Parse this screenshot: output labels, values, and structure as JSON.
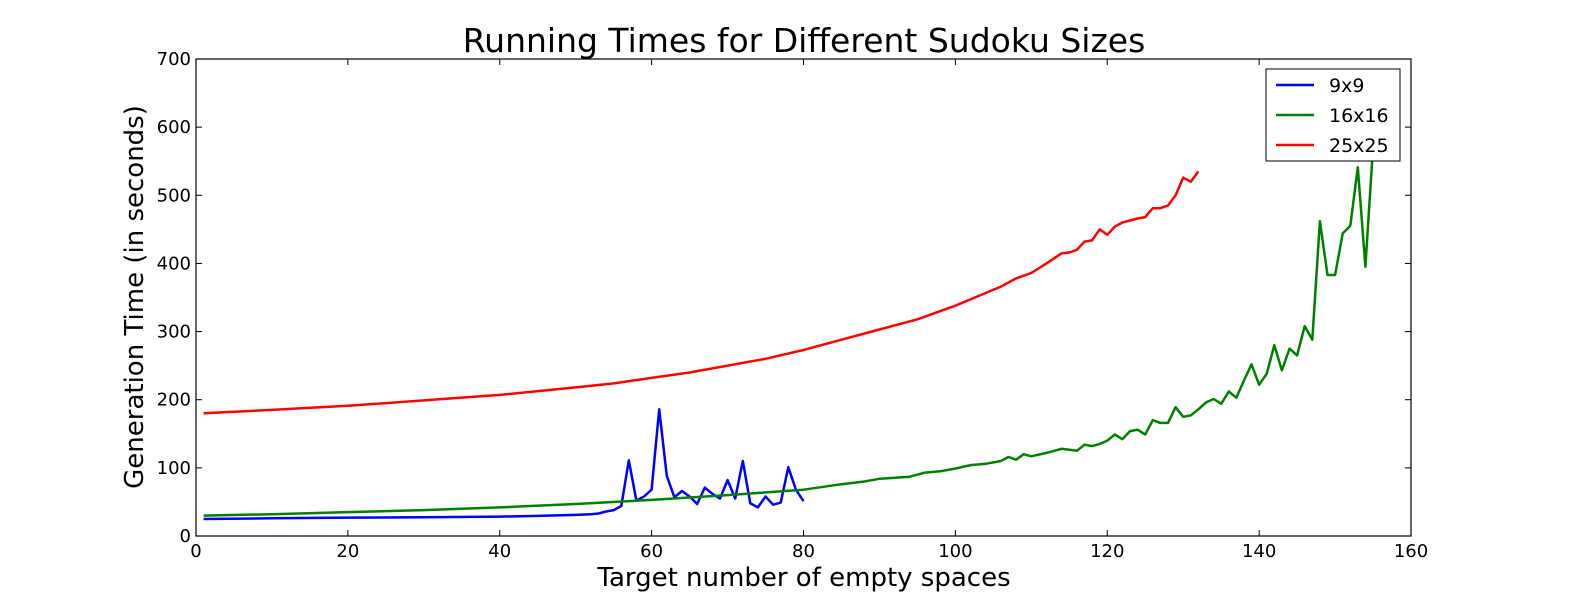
{
  "chart_data": {
    "type": "line",
    "title": "Running Times for Different Sudoku Sizes",
    "xlabel": "Target number of empty spaces",
    "ylabel": "Generation Time (in seconds)",
    "xlim": [
      0,
      160
    ],
    "ylim": [
      0,
      700
    ],
    "xticks": [
      0,
      20,
      40,
      60,
      80,
      100,
      120,
      140,
      160
    ],
    "yticks": [
      0,
      100,
      200,
      300,
      400,
      500,
      600,
      700
    ],
    "grid": false,
    "legend": "top-right",
    "series": [
      {
        "name": "9x9",
        "color": "#0000ff",
        "points": [
          [
            1,
            25
          ],
          [
            10,
            26
          ],
          [
            20,
            27
          ],
          [
            30,
            27.5
          ],
          [
            40,
            28.5
          ],
          [
            45,
            29.5
          ],
          [
            50,
            31
          ],
          [
            52,
            32
          ],
          [
            53,
            33
          ],
          [
            54,
            36
          ],
          [
            55,
            38
          ],
          [
            56,
            44
          ],
          [
            57,
            111
          ],
          [
            58,
            52
          ],
          [
            59,
            58
          ],
          [
            60,
            68
          ],
          [
            61,
            186
          ],
          [
            62,
            88
          ],
          [
            63,
            57
          ],
          [
            64,
            66
          ],
          [
            65,
            58
          ],
          [
            66,
            47
          ],
          [
            67,
            71
          ],
          [
            68,
            62
          ],
          [
            69,
            55
          ],
          [
            70,
            82
          ],
          [
            71,
            55
          ],
          [
            72,
            110
          ],
          [
            73,
            48
          ],
          [
            74,
            42
          ],
          [
            75,
            58
          ],
          [
            76,
            46
          ],
          [
            77,
            49
          ],
          [
            78,
            101
          ],
          [
            79,
            68
          ],
          [
            80,
            51
          ]
        ]
      },
      {
        "name": "16x16",
        "color": "#008000",
        "points": [
          [
            1,
            30
          ],
          [
            10,
            32
          ],
          [
            20,
            35
          ],
          [
            30,
            38
          ],
          [
            40,
            42
          ],
          [
            50,
            47
          ],
          [
            60,
            53
          ],
          [
            70,
            60
          ],
          [
            80,
            68
          ],
          [
            85,
            76
          ],
          [
            88,
            80
          ],
          [
            90,
            84
          ],
          [
            94,
            87
          ],
          [
            96,
            93
          ],
          [
            98,
            95
          ],
          [
            100,
            99
          ],
          [
            102,
            104
          ],
          [
            104,
            106
          ],
          [
            106,
            110
          ],
          [
            107,
            116
          ],
          [
            108,
            112
          ],
          [
            109,
            120
          ],
          [
            110,
            117
          ],
          [
            112,
            122
          ],
          [
            114,
            128
          ],
          [
            116,
            125
          ],
          [
            117,
            134
          ],
          [
            118,
            132
          ],
          [
            119,
            135
          ],
          [
            120,
            140
          ],
          [
            121,
            149
          ],
          [
            122,
            142
          ],
          [
            123,
            154
          ],
          [
            124,
            156
          ],
          [
            125,
            149
          ],
          [
            126,
            170
          ],
          [
            127,
            166
          ],
          [
            128,
            166
          ],
          [
            129,
            189
          ],
          [
            130,
            175
          ],
          [
            131,
            177
          ],
          [
            132,
            186
          ],
          [
            133,
            196
          ],
          [
            134,
            201
          ],
          [
            135,
            194
          ],
          [
            136,
            212
          ],
          [
            137,
            203
          ],
          [
            138,
            228
          ],
          [
            139,
            252
          ],
          [
            140,
            222
          ],
          [
            141,
            238
          ],
          [
            142,
            280
          ],
          [
            143,
            243
          ],
          [
            144,
            275
          ],
          [
            145,
            265
          ],
          [
            146,
            308
          ],
          [
            147,
            288
          ],
          [
            148,
            462
          ],
          [
            149,
            383
          ],
          [
            150,
            383
          ],
          [
            151,
            444
          ],
          [
            152,
            455
          ],
          [
            153,
            541
          ],
          [
            154,
            395
          ],
          [
            155,
            570
          ]
        ]
      },
      {
        "name": "25x25",
        "color": "#ff0000",
        "points": [
          [
            1,
            180
          ],
          [
            10,
            185
          ],
          [
            20,
            191
          ],
          [
            30,
            199
          ],
          [
            40,
            207
          ],
          [
            50,
            218
          ],
          [
            55,
            224
          ],
          [
            60,
            232
          ],
          [
            65,
            240
          ],
          [
            70,
            250
          ],
          [
            75,
            260
          ],
          [
            80,
            273
          ],
          [
            85,
            288
          ],
          [
            90,
            303
          ],
          [
            95,
            318
          ],
          [
            100,
            338
          ],
          [
            103,
            352
          ],
          [
            106,
            366
          ],
          [
            108,
            378
          ],
          [
            110,
            386
          ],
          [
            112,
            400
          ],
          [
            114,
            415
          ],
          [
            115,
            416
          ],
          [
            116,
            420
          ],
          [
            117,
            432
          ],
          [
            118,
            434
          ],
          [
            119,
            450
          ],
          [
            120,
            442
          ],
          [
            121,
            454
          ],
          [
            122,
            460
          ],
          [
            123,
            463
          ],
          [
            124,
            466
          ],
          [
            125,
            468
          ],
          [
            126,
            481
          ],
          [
            127,
            481
          ],
          [
            128,
            485
          ],
          [
            129,
            500
          ],
          [
            130,
            526
          ],
          [
            131,
            520
          ],
          [
            132,
            535
          ]
        ]
      }
    ]
  }
}
